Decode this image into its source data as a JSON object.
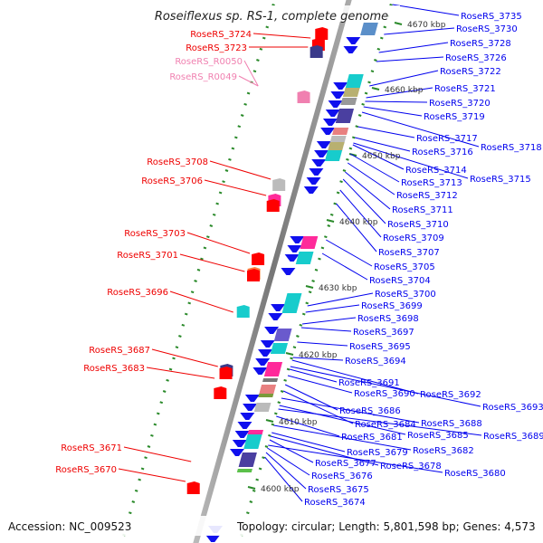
{
  "title": "Roseiflexus sp. RS-1, complete genome",
  "footer": {
    "accession": "Accession: NC_009523",
    "summary": "Topology: circular; Length: 5,801,598 bp; Genes: 4,573"
  },
  "colors": {
    "right_label": "#0000ee",
    "left_label": "#ee0000",
    "rna_label": "#f080b0",
    "backbone": "#888888",
    "tick": "#2a8a2a"
  },
  "kbp_ticks": [
    "4670 kbp",
    "4660 kbp",
    "4650 kbp",
    "4640 kbp",
    "4630 kbp",
    "4620 kbp",
    "4610 kbp",
    "4600 kbp"
  ],
  "right_labels": [
    "RoseRS_3735",
    "RoseRS_3730",
    "RoseRS_3728",
    "RoseRS_3726",
    "RoseRS_3722",
    "RoseRS_3721",
    "RoseRS_3720",
    "RoseRS_3719",
    "RoseRS_3717",
    "RoseRS_3718",
    "RoseRS_3716",
    "RoseRS_3714",
    "RoseRS_3715",
    "RoseRS_3713",
    "RoseRS_3712",
    "RoseRS_3711",
    "RoseRS_3710",
    "RoseRS_3709",
    "RoseRS_3707",
    "RoseRS_3705",
    "RoseRS_3704",
    "RoseRS_3700",
    "RoseRS_3699",
    "RoseRS_3698",
    "RoseRS_3697",
    "RoseRS_3695",
    "RoseRS_3694",
    "RoseRS_3691",
    "RoseRS_3690",
    "RoseRS_3692",
    "RoseRS_3693",
    "RoseRS_3686",
    "RoseRS_3684",
    "RoseRS_3688",
    "RoseRS_3685",
    "RoseRS_3689",
    "RoseRS_3681",
    "RoseRS_3682",
    "RoseRS_3679",
    "RoseRS_3678",
    "RoseRS_3677",
    "RoseRS_3680",
    "RoseRS_3676",
    "RoseRS_3675",
    "RoseRS_3674"
  ],
  "left_labels": [
    {
      "text": "RoseRS_3724",
      "kind": "gene"
    },
    {
      "text": "RoseRS_3723",
      "kind": "gene"
    },
    {
      "text": "RoseRS_R0050",
      "kind": "rna"
    },
    {
      "text": "RoseRS_R0049",
      "kind": "rna"
    },
    {
      "text": "RoseRS_3708",
      "kind": "gene"
    },
    {
      "text": "RoseRS_3706",
      "kind": "gene"
    },
    {
      "text": "RoseRS_3703",
      "kind": "gene"
    },
    {
      "text": "RoseRS_3701",
      "kind": "gene"
    },
    {
      "text": "RoseRS_3696",
      "kind": "gene"
    },
    {
      "text": "RoseRS_3687",
      "kind": "gene"
    },
    {
      "text": "RoseRS_3683",
      "kind": "gene"
    },
    {
      "text": "RoseRS_3671",
      "kind": "gene"
    },
    {
      "text": "RoseRS_3670",
      "kind": "gene"
    }
  ]
}
